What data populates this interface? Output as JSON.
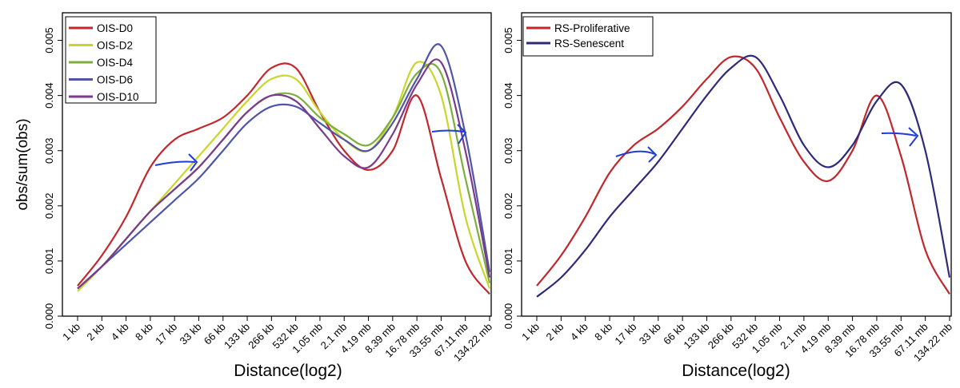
{
  "chart_data": [
    {
      "type": "line",
      "title": "",
      "xlabel": "Distance(log2)",
      "ylabel": "obs/sum(obs)",
      "x_scale": "log2",
      "categories": [
        "1 kb",
        "2 kb",
        "4 kb",
        "8 kb",
        "17 kb",
        "33 kb",
        "66 kb",
        "133 kb",
        "266 kb",
        "532 kb",
        "1.05 mb",
        "2.1 mb",
        "4.19 mb",
        "8.39 mb",
        "16.78 mb",
        "33.55 mb",
        "67.11 mb",
        "134.22 mb"
      ],
      "ylim": [
        0,
        0.0055
      ],
      "yticks": [
        "0.000",
        "0.001",
        "0.002",
        "0.003",
        "0.004",
        "0.005"
      ],
      "legend_position": "top-left",
      "grid": false,
      "series": [
        {
          "name": "OIS-D0",
          "color": "#c1272d",
          "values": [
            0.00055,
            0.0011,
            0.0018,
            0.0027,
            0.0032,
            0.0034,
            0.0036,
            0.004,
            0.0045,
            0.0045,
            0.0037,
            0.003,
            0.00265,
            0.003,
            0.004,
            0.0025,
            0.001,
            0.0004
          ]
        },
        {
          "name": "OIS-D2",
          "color": "#c9d62a",
          "values": [
            0.00045,
            0.0009,
            0.0014,
            0.0019,
            0.0024,
            0.0029,
            0.0034,
            0.0039,
            0.0043,
            0.0043,
            0.0037,
            0.0032,
            0.003,
            0.0036,
            0.0046,
            0.004,
            0.0018,
            0.0005
          ]
        },
        {
          "name": "OIS-D4",
          "color": "#7caf3a",
          "values": [
            0.0005,
            0.0009,
            0.0014,
            0.0019,
            0.0023,
            0.0027,
            0.0032,
            0.0037,
            0.004,
            0.004,
            0.0036,
            0.0033,
            0.0031,
            0.0036,
            0.0044,
            0.0044,
            0.0025,
            0.0006
          ]
        },
        {
          "name": "OIS-D6",
          "color": "#4f55a8",
          "values": [
            0.0005,
            0.0009,
            0.0013,
            0.0017,
            0.0021,
            0.0025,
            0.003,
            0.0035,
            0.0038,
            0.0038,
            0.0035,
            0.0032,
            0.003,
            0.0035,
            0.0043,
            0.0049,
            0.0033,
            0.0008
          ]
        },
        {
          "name": "OIS-D10",
          "color": "#7b3a8c",
          "values": [
            0.0005,
            0.0009,
            0.0014,
            0.0019,
            0.0023,
            0.0027,
            0.0032,
            0.0037,
            0.004,
            0.0039,
            0.0034,
            0.0029,
            0.0027,
            0.0033,
            0.0042,
            0.0046,
            0.003,
            0.0007
          ]
        }
      ]
    },
    {
      "type": "line",
      "title": "",
      "xlabel": "Distance(log2)",
      "ylabel": "",
      "x_scale": "log2",
      "categories": [
        "1 kb",
        "2 kb",
        "4 kb",
        "8 kb",
        "17 kb",
        "33 kb",
        "66 kb",
        "133 kb",
        "266 kb",
        "532 kb",
        "1.05 mb",
        "2.1 mb",
        "4.19 mb",
        "8.39 mb",
        "16.78 mb",
        "33.55 mb",
        "67.11 mb",
        "134.22 mb"
      ],
      "ylim": [
        0,
        0.0055
      ],
      "yticks": [
        "0.000",
        "0.001",
        "0.002",
        "0.003",
        "0.004",
        "0.005"
      ],
      "legend_position": "top-left",
      "grid": false,
      "series": [
        {
          "name": "RS-Proliferative",
          "color": "#c1272d",
          "values": [
            0.00055,
            0.0011,
            0.0018,
            0.0026,
            0.0031,
            0.0034,
            0.0038,
            0.0043,
            0.0047,
            0.0045,
            0.0036,
            0.0028,
            0.00245,
            0.003,
            0.004,
            0.0029,
            0.0012,
            0.0004
          ]
        },
        {
          "name": "RS-Senescent",
          "color": "#2e2a7a",
          "values": [
            0.00035,
            0.0007,
            0.0012,
            0.0018,
            0.0023,
            0.0028,
            0.0034,
            0.004,
            0.0045,
            0.0047,
            0.004,
            0.0031,
            0.0027,
            0.0031,
            0.0039,
            0.0042,
            0.003,
            0.0007
          ]
        }
      ]
    }
  ]
}
